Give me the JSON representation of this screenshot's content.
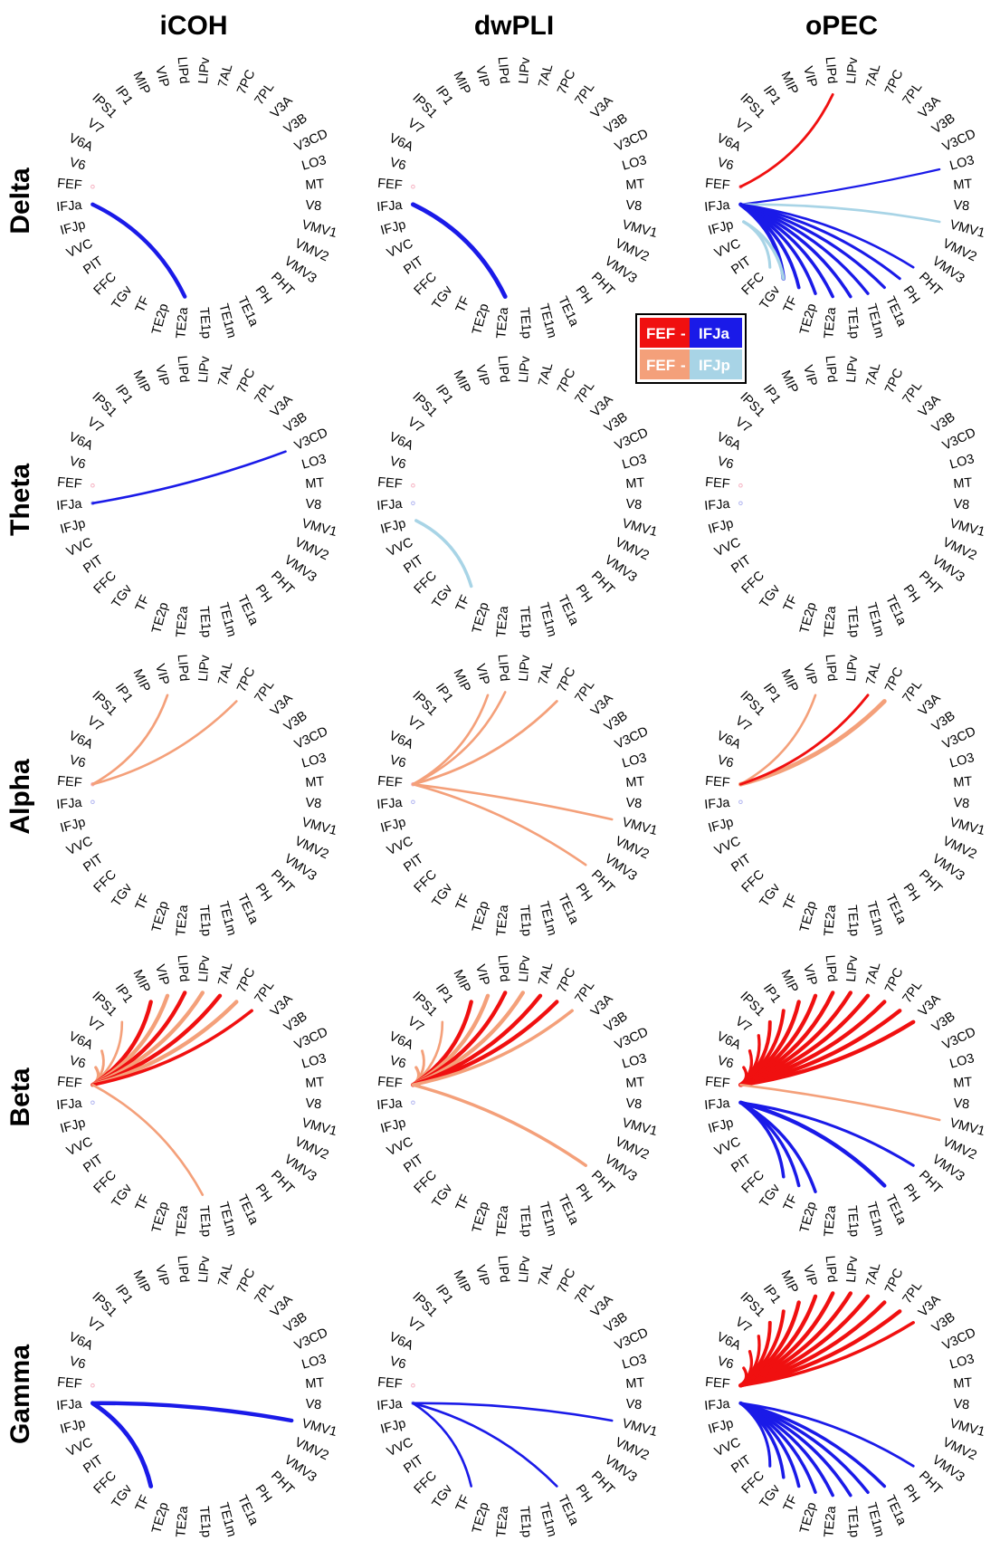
{
  "column_titles": [
    "iCOH",
    "dwPLI",
    "oPEC"
  ],
  "row_titles": [
    "Delta",
    "Theta",
    "Alpha",
    "Beta",
    "Gamma"
  ],
  "nodes": [
    "LIPv",
    "7AL",
    "7PC",
    "7PL",
    "V3A",
    "V3B",
    "V3CD",
    "LO3",
    "MT",
    "V8",
    "VMV1",
    "VMV2",
    "VMV3",
    "PHT",
    "PH",
    "TE1a",
    "TE1m",
    "TE1p",
    "TE2a",
    "TE2p",
    "TF",
    "TGv",
    "FFC",
    "PIT",
    "VVC",
    "IFJp",
    "IFJa",
    "FEF",
    "V6",
    "V6A",
    "V7",
    "IPS1",
    "IP1",
    "MIP",
    "VIP",
    "LIPd"
  ],
  "legend": {
    "row1": {
      "left": "FEF",
      "sep": " - ",
      "right": "IFJa"
    },
    "row2": {
      "left": "FEF",
      "sep": " - ",
      "right": "IFJp"
    }
  },
  "colors": {
    "FEF_IFJa_FEF": "#f01010",
    "FEF_IFJa_IFJa": "#1a1ae8",
    "FEF_IFJp_FEF": "#f4a07a",
    "FEF_IFJp_IFJp": "#a8d4e6"
  },
  "panels": [
    {
      "row": "Delta",
      "col": "iCOH",
      "edges": [
        {
          "from": "IFJa",
          "to": "TE2a",
          "group": "IFJa",
          "weight": 2.0
        }
      ]
    },
    {
      "row": "Delta",
      "col": "dwPLI",
      "edges": [
        {
          "from": "IFJa",
          "to": "TE2a",
          "group": "IFJa",
          "weight": 2.2
        }
      ]
    },
    {
      "row": "Delta",
      "col": "oPEC",
      "edges": [
        {
          "from": "FEF",
          "to": "LIPd",
          "group": "FEF",
          "weight": 1.3
        },
        {
          "from": "IFJa",
          "to": "LO3",
          "group": "IFJa",
          "weight": 1.0
        },
        {
          "from": "IFJa",
          "to": "VMV1",
          "group": "IFJp",
          "weight": 1.2
        },
        {
          "from": "IFJa",
          "to": "PHT",
          "group": "IFJa",
          "weight": 1.2
        },
        {
          "from": "IFJa",
          "to": "PH",
          "group": "IFJa",
          "weight": 1.4
        },
        {
          "from": "IFJa",
          "to": "TE1a",
          "group": "IFJa",
          "weight": 1.5
        },
        {
          "from": "IFJa",
          "to": "TE1m",
          "group": "IFJa",
          "weight": 1.5
        },
        {
          "from": "IFJa",
          "to": "TE1p",
          "group": "IFJa",
          "weight": 1.6
        },
        {
          "from": "IFJa",
          "to": "TE2a",
          "group": "IFJa",
          "weight": 1.6
        },
        {
          "from": "IFJa",
          "to": "TE2p",
          "group": "IFJa",
          "weight": 1.6
        },
        {
          "from": "IFJa",
          "to": "TF",
          "group": "IFJa",
          "weight": 1.7
        },
        {
          "from": "IFJa",
          "to": "TGv",
          "group": "IFJa",
          "weight": 2.0
        },
        {
          "from": "IFJp",
          "to": "TGv",
          "group": "IFJp",
          "weight": 1.6
        },
        {
          "from": "IFJp",
          "to": "FFC",
          "group": "IFJp",
          "weight": 1.4
        }
      ]
    },
    {
      "row": "Theta",
      "col": "iCOH",
      "edges": [
        {
          "from": "IFJa",
          "to": "V3CD",
          "group": "IFJa",
          "weight": 1.2
        }
      ]
    },
    {
      "row": "Theta",
      "col": "dwPLI",
      "edges": [
        {
          "from": "IFJp",
          "to": "TF",
          "group": "IFJp",
          "weight": 1.6
        }
      ]
    },
    {
      "row": "Theta",
      "col": "oPEC",
      "edges": []
    },
    {
      "row": "Alpha",
      "col": "iCOH",
      "edges": [
        {
          "from": "FEF",
          "to": "VIP",
          "group": "FEFp",
          "weight": 1.2
        },
        {
          "from": "FEF",
          "to": "7PC",
          "group": "FEFp",
          "weight": 1.2
        }
      ]
    },
    {
      "row": "Alpha",
      "col": "dwPLI",
      "edges": [
        {
          "from": "FEF",
          "to": "VIP",
          "group": "FEFp",
          "weight": 1.2
        },
        {
          "from": "FEF",
          "to": "LIPd",
          "group": "FEFp",
          "weight": 1.2
        },
        {
          "from": "FEF",
          "to": "7PC",
          "group": "FEFp",
          "weight": 1.3
        },
        {
          "from": "FEF",
          "to": "VMV1",
          "group": "FEFp",
          "weight": 1.2
        },
        {
          "from": "FEF",
          "to": "PHT",
          "group": "FEFp",
          "weight": 1.2
        }
      ]
    },
    {
      "row": "Alpha",
      "col": "oPEC",
      "edges": [
        {
          "from": "FEF",
          "to": "VIP",
          "group": "FEFp",
          "weight": 1.2
        },
        {
          "from": "FEF",
          "to": "7PC",
          "group": "FEFp",
          "weight": 2.2
        },
        {
          "from": "FEF",
          "to": "7AL",
          "group": "FEF",
          "weight": 1.3
        }
      ]
    },
    {
      "row": "Beta",
      "col": "iCOH",
      "edges": [
        {
          "from": "FEF",
          "to": "V6",
          "group": "FEFp",
          "weight": 1.5
        },
        {
          "from": "FEF",
          "to": "V6A",
          "group": "FEFp",
          "weight": 1.3
        },
        {
          "from": "FEF",
          "to": "IPS1",
          "group": "FEFp",
          "weight": 1.2
        },
        {
          "from": "FEF",
          "to": "MIP",
          "group": "FEF",
          "weight": 2.0
        },
        {
          "from": "FEF",
          "to": "VIP",
          "group": "FEFp",
          "weight": 2.0
        },
        {
          "from": "FEF",
          "to": "LIPd",
          "group": "FEF",
          "weight": 2.0
        },
        {
          "from": "FEF",
          "to": "LIPv",
          "group": "FEFp",
          "weight": 2.0
        },
        {
          "from": "FEF",
          "to": "7AL",
          "group": "FEF",
          "weight": 2.0
        },
        {
          "from": "FEF",
          "to": "7PC",
          "group": "FEFp",
          "weight": 2.0
        },
        {
          "from": "FEF",
          "to": "7PL",
          "group": "FEF",
          "weight": 1.6
        },
        {
          "from": "FEF",
          "to": "TE1p",
          "group": "FEFp",
          "weight": 1.2
        }
      ]
    },
    {
      "row": "Beta",
      "col": "dwPLI",
      "edges": [
        {
          "from": "FEF",
          "to": "V6",
          "group": "FEFp",
          "weight": 1.5
        },
        {
          "from": "FEF",
          "to": "V6A",
          "group": "FEFp",
          "weight": 1.3
        },
        {
          "from": "FEF",
          "to": "IPS1",
          "group": "FEFp",
          "weight": 1.2
        },
        {
          "from": "FEF",
          "to": "MIP",
          "group": "FEF",
          "weight": 2.0
        },
        {
          "from": "FEF",
          "to": "VIP",
          "group": "FEFp",
          "weight": 2.0
        },
        {
          "from": "FEF",
          "to": "LIPd",
          "group": "FEF",
          "weight": 2.0
        },
        {
          "from": "FEF",
          "to": "LIPv",
          "group": "FEFp",
          "weight": 2.0
        },
        {
          "from": "FEF",
          "to": "7AL",
          "group": "FEF",
          "weight": 2.0
        },
        {
          "from": "FEF",
          "to": "7PC",
          "group": "FEF",
          "weight": 2.0
        },
        {
          "from": "FEF",
          "to": "7PL",
          "group": "FEFp",
          "weight": 1.6
        },
        {
          "from": "FEF",
          "to": "PHT",
          "group": "FEFp",
          "weight": 1.6
        }
      ]
    },
    {
      "row": "Beta",
      "col": "oPEC",
      "edges": [
        {
          "from": "FEF",
          "to": "V6",
          "group": "FEF",
          "weight": 1.5
        },
        {
          "from": "FEF",
          "to": "V6A",
          "group": "FEF",
          "weight": 1.5
        },
        {
          "from": "FEF",
          "to": "V7",
          "group": "FEF",
          "weight": 1.5
        },
        {
          "from": "FEF",
          "to": "IPS1",
          "group": "FEF",
          "weight": 1.8
        },
        {
          "from": "FEF",
          "to": "IP1",
          "group": "FEF",
          "weight": 1.8
        },
        {
          "from": "FEF",
          "to": "MIP",
          "group": "FEF",
          "weight": 2.0
        },
        {
          "from": "FEF",
          "to": "VIP",
          "group": "FEF",
          "weight": 2.0
        },
        {
          "from": "FEF",
          "to": "LIPd",
          "group": "FEF",
          "weight": 2.0
        },
        {
          "from": "FEF",
          "to": "LIPv",
          "group": "FEF",
          "weight": 2.0
        },
        {
          "from": "FEF",
          "to": "7AL",
          "group": "FEF",
          "weight": 2.0
        },
        {
          "from": "FEF",
          "to": "7PC",
          "group": "FEF",
          "weight": 2.0
        },
        {
          "from": "FEF",
          "to": "7PL",
          "group": "FEF",
          "weight": 2.0
        },
        {
          "from": "FEF",
          "to": "V3A",
          "group": "FEF",
          "weight": 2.0
        },
        {
          "from": "FEF",
          "to": "VMV1",
          "group": "FEFp",
          "weight": 1.2
        },
        {
          "from": "IFJa",
          "to": "PHT",
          "group": "IFJa",
          "weight": 1.4
        },
        {
          "from": "IFJa",
          "to": "TE1a",
          "group": "IFJa",
          "weight": 2.0
        },
        {
          "from": "IFJa",
          "to": "TE2p",
          "group": "IFJa",
          "weight": 1.6
        },
        {
          "from": "IFJa",
          "to": "TF",
          "group": "IFJa",
          "weight": 1.6
        },
        {
          "from": "IFJa",
          "to": "TGv",
          "group": "IFJa",
          "weight": 1.6
        }
      ]
    },
    {
      "row": "Gamma",
      "col": "iCOH",
      "edges": [
        {
          "from": "IFJa",
          "to": "VMV1",
          "group": "IFJa",
          "weight": 2.0
        },
        {
          "from": "IFJa",
          "to": "TF",
          "group": "IFJa",
          "weight": 2.2
        }
      ]
    },
    {
      "row": "Gamma",
      "col": "dwPLI",
      "edges": [
        {
          "from": "IFJa",
          "to": "VMV1",
          "group": "IFJa",
          "weight": 1.2
        },
        {
          "from": "IFJa",
          "to": "TF",
          "group": "IFJa",
          "weight": 1.2
        },
        {
          "from": "IFJa",
          "to": "TE1a",
          "group": "IFJa",
          "weight": 1.2
        }
      ]
    },
    {
      "row": "Gamma",
      "col": "oPEC",
      "edges": [
        {
          "from": "FEF",
          "to": "V6",
          "group": "FEF",
          "weight": 1.5
        },
        {
          "from": "FEF",
          "to": "V6A",
          "group": "FEF",
          "weight": 1.5
        },
        {
          "from": "FEF",
          "to": "V7",
          "group": "FEF",
          "weight": 1.5
        },
        {
          "from": "FEF",
          "to": "IPS1",
          "group": "FEF",
          "weight": 1.8
        },
        {
          "from": "FEF",
          "to": "IP1",
          "group": "FEF",
          "weight": 1.8
        },
        {
          "from": "FEF",
          "to": "MIP",
          "group": "FEF",
          "weight": 2.0
        },
        {
          "from": "FEF",
          "to": "VIP",
          "group": "FEF",
          "weight": 2.0
        },
        {
          "from": "FEF",
          "to": "LIPd",
          "group": "FEF",
          "weight": 2.0
        },
        {
          "from": "FEF",
          "to": "LIPv",
          "group": "FEF",
          "weight": 2.0
        },
        {
          "from": "FEF",
          "to": "7AL",
          "group": "FEF",
          "weight": 2.0
        },
        {
          "from": "FEF",
          "to": "7PC",
          "group": "FEF",
          "weight": 2.0
        },
        {
          "from": "FEF",
          "to": "7PL",
          "group": "FEF",
          "weight": 2.0
        },
        {
          "from": "FEF",
          "to": "V3A",
          "group": "FEF",
          "weight": 1.6
        },
        {
          "from": "IFJa",
          "to": "PHT",
          "group": "IFJa",
          "weight": 1.3
        },
        {
          "from": "IFJa",
          "to": "TE1a",
          "group": "IFJa",
          "weight": 1.6
        },
        {
          "from": "IFJa",
          "to": "TE1m",
          "group": "IFJa",
          "weight": 1.6
        },
        {
          "from": "IFJa",
          "to": "TE1p",
          "group": "IFJa",
          "weight": 1.6
        },
        {
          "from": "IFJa",
          "to": "TE2a",
          "group": "IFJa",
          "weight": 1.6
        },
        {
          "from": "IFJa",
          "to": "TE2p",
          "group": "IFJa",
          "weight": 1.6
        },
        {
          "from": "IFJa",
          "to": "TF",
          "group": "IFJa",
          "weight": 1.6
        },
        {
          "from": "IFJa",
          "to": "TGv",
          "group": "IFJa",
          "weight": 1.6
        },
        {
          "from": "IFJa",
          "to": "FFC",
          "group": "IFJa",
          "weight": 1.4
        }
      ]
    }
  ]
}
